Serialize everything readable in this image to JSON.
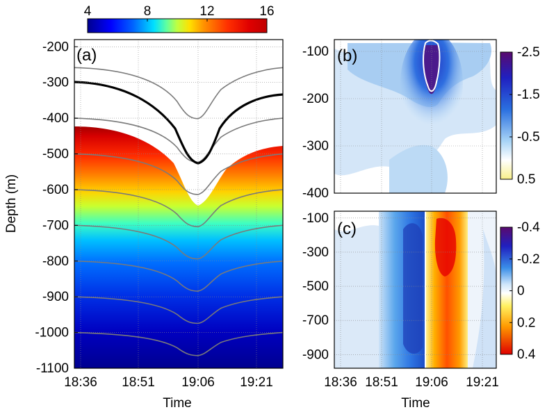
{
  "chart_data": [
    {
      "panel": "(a)",
      "type": "heatmap",
      "xlabel": "Time",
      "ylabel": "Depth (m)",
      "xticks": [
        "18:36",
        "18:51",
        "19:06",
        "19:21"
      ],
      "yticks": [
        -200,
        -300,
        -400,
        -500,
        -600,
        -700,
        -800,
        -900,
        -1000,
        -1100
      ],
      "ylim": [
        -1100,
        -180
      ],
      "colorbar": {
        "position": "top",
        "ticks": [
          4,
          8,
          12,
          16
        ],
        "range": [
          4,
          16
        ],
        "colormap": "jet"
      },
      "grid": true,
      "highlighted_isotherm": "thick black contour",
      "isotherm_background_depths": [
        -200,
        -300,
        -400,
        -500,
        -600,
        -700,
        -800,
        -900,
        -1000
      ],
      "trough": {
        "time": "19:06",
        "isotherm_minimum_depth": -530
      }
    },
    {
      "panel": "(b)",
      "type": "heatmap",
      "xlabel": "",
      "ylabel": "",
      "xticks": [],
      "yticks": [
        -100,
        -200,
        -300,
        -400
      ],
      "ylim": [
        -400,
        -75
      ],
      "colorbar": {
        "position": "right",
        "ticks": [
          -2.5,
          -1.5,
          -0.5,
          0.5
        ],
        "range": [
          -2.5,
          0.5
        ],
        "colormap": "purple-blue-white-yellow"
      },
      "grid": true,
      "white_contour": "closed loop near 19:06, depth -80 to -190 m"
    },
    {
      "panel": "(c)",
      "type": "heatmap",
      "xlabel": "Time",
      "ylabel": "",
      "xticks": [
        "18:36",
        "18:51",
        "19:06",
        "19:21"
      ],
      "yticks": [
        -100,
        -300,
        -500,
        -700,
        -900
      ],
      "ylim": [
        -980,
        -60
      ],
      "colorbar": {
        "position": "right",
        "ticks": [
          -0.4,
          -0.2,
          0,
          0.2,
          0.4
        ],
        "range": [
          -0.4,
          0.4
        ],
        "colormap": "purple-blue-white-yellow-red"
      },
      "grid": true,
      "negative_band": "around 18:55-19:04",
      "positive_band": "around 19:06-19:15"
    }
  ]
}
